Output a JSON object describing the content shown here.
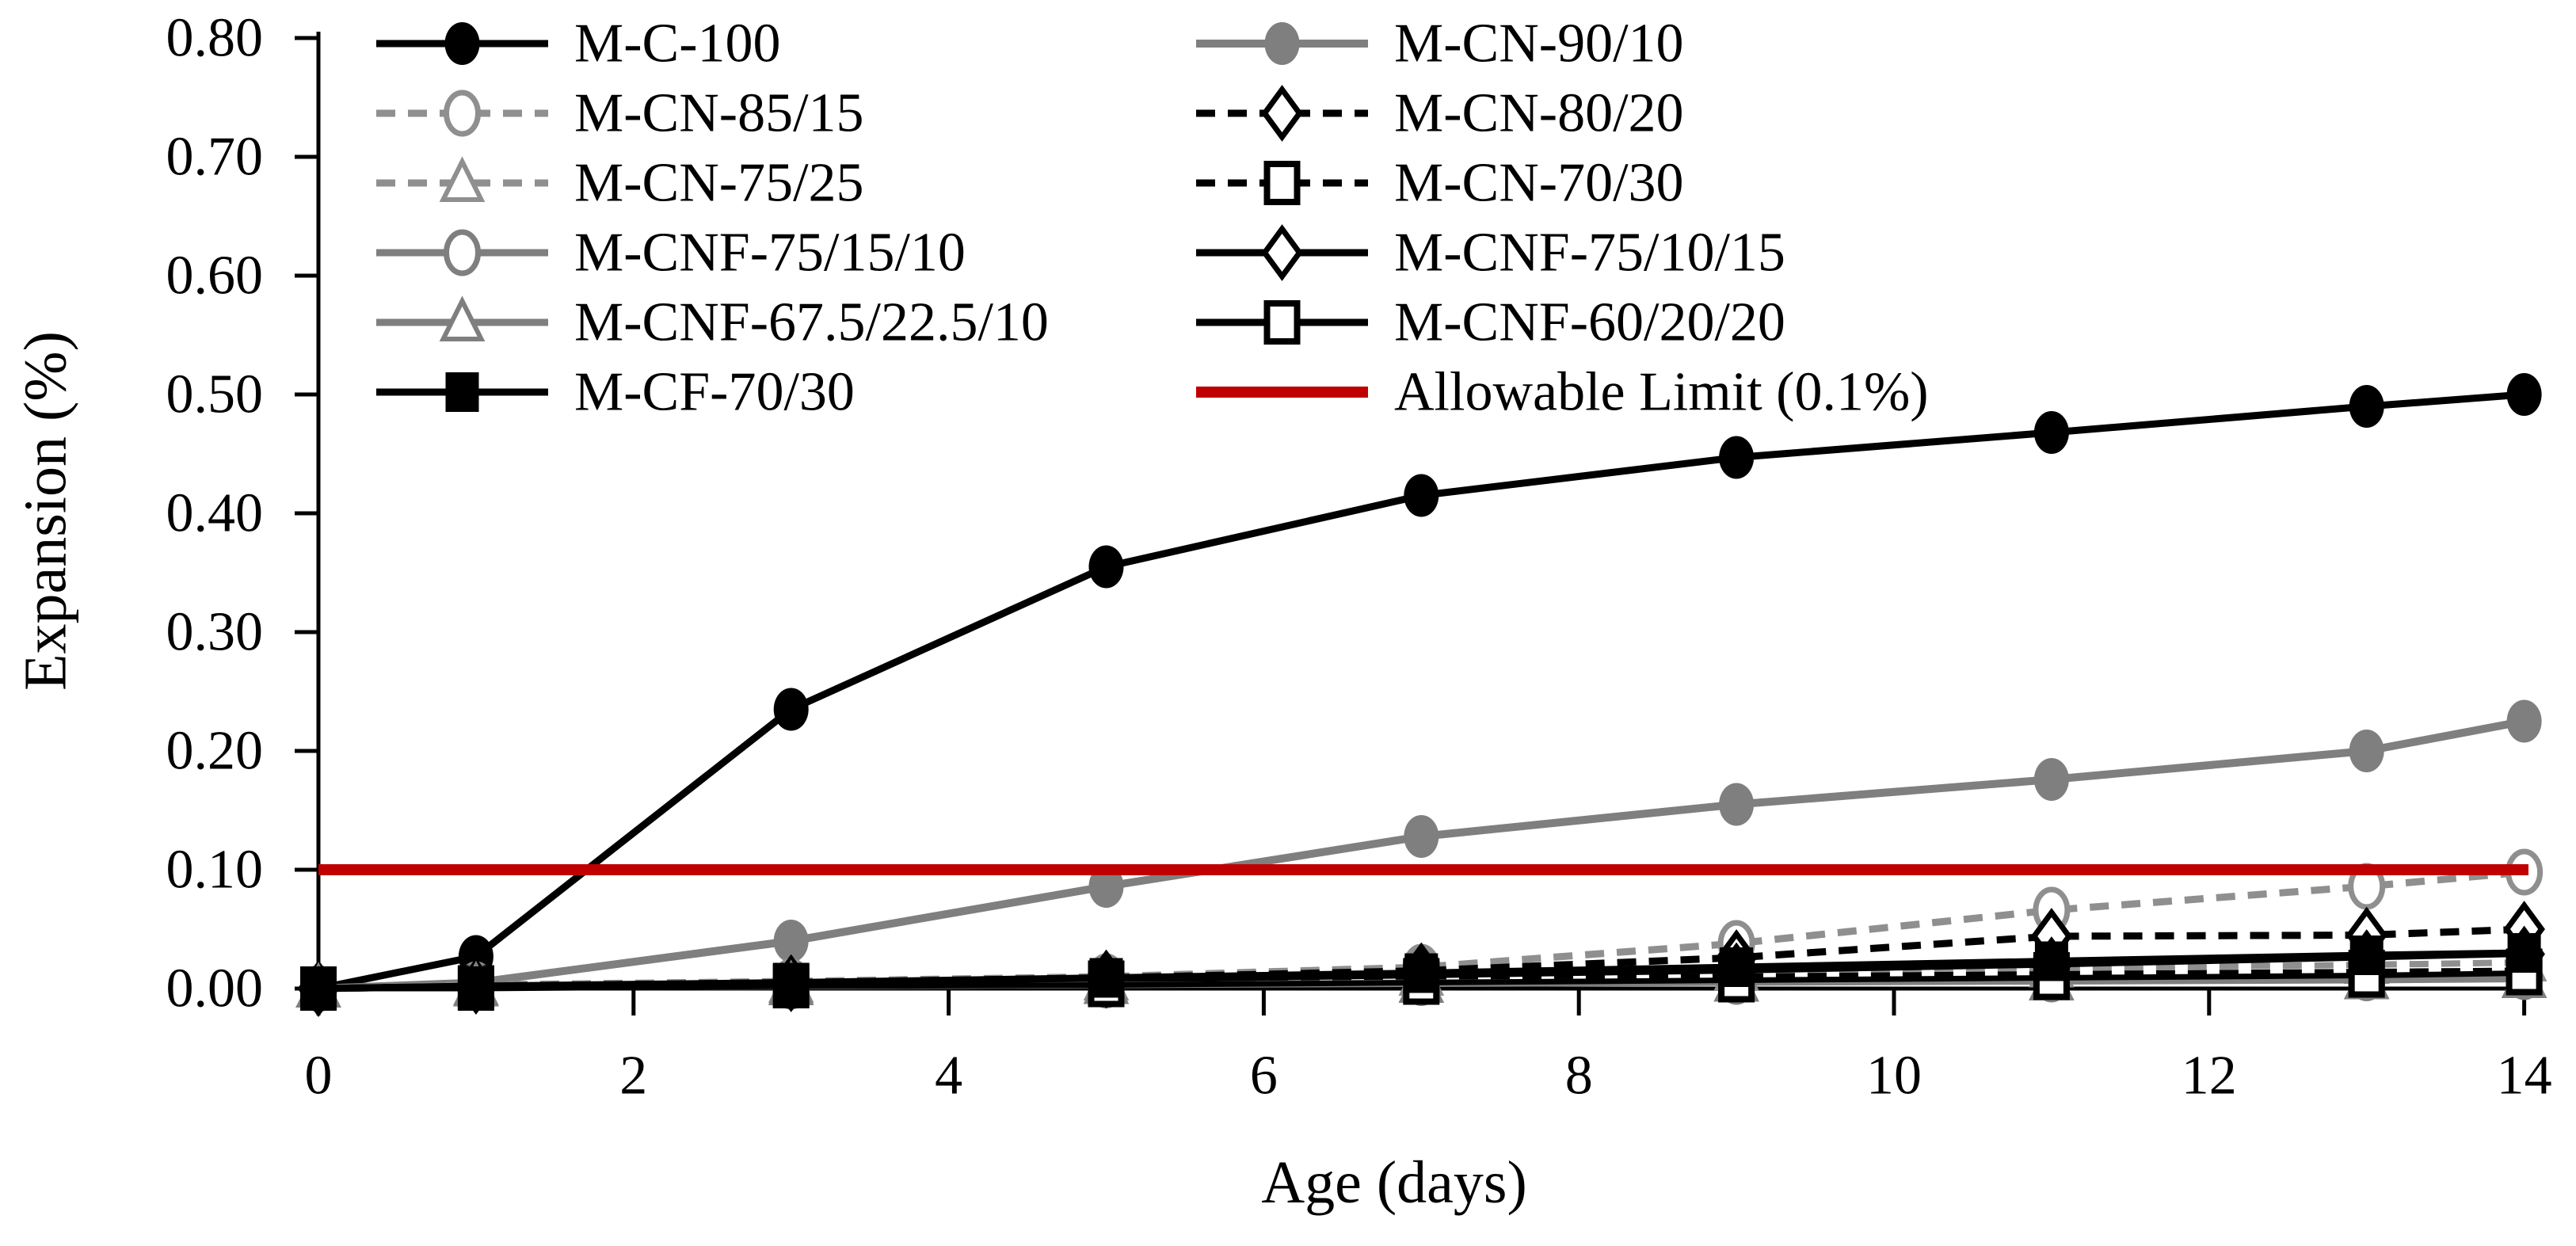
{
  "chart_data": {
    "type": "line",
    "title": "",
    "xlabel": "Age (days)",
    "ylabel": "Expansion (%)",
    "x_label_days": "Age (days)",
    "xlim": [
      0,
      14
    ],
    "ylim": [
      0,
      0.8
    ],
    "grid": false,
    "legend_position": "top-left, two columns",
    "x_ticks": [
      0,
      2,
      4,
      6,
      8,
      10,
      12,
      14
    ],
    "y_tick_labels": [
      "0.00",
      "0.10",
      "0.20",
      "0.30",
      "0.40",
      "0.50",
      "0.60",
      "0.70",
      "0.80"
    ],
    "x": [
      0,
      1,
      3,
      5,
      7,
      9,
      11,
      13,
      14
    ],
    "colors": {
      "black": "#000000",
      "solid_gray": "#7f7f7f",
      "dashed_gray": "#8f8f8f",
      "limit_red": "#c00000"
    },
    "series": [
      {
        "name": "M-C-100",
        "color": "#000000",
        "line": "solid",
        "lw": 9,
        "marker": "circle-filled",
        "values": [
          0,
          0.027,
          0.235,
          0.355,
          0.415,
          0.447,
          0.468,
          0.49,
          0.5
        ]
      },
      {
        "name": "M-CN-90/10",
        "color": "#7f7f7f",
        "line": "solid",
        "lw": 10,
        "marker": "circle-filled",
        "values": [
          0,
          0.005,
          0.04,
          0.086,
          0.128,
          0.155,
          0.176,
          0.2,
          0.225
        ]
      },
      {
        "name": "M-CN-85/15",
        "color": "#8f8f8f",
        "line": "dashed",
        "lw": 9,
        "marker": "circle-open",
        "values": [
          0,
          0.003,
          0.006,
          0.01,
          0.018,
          0.038,
          0.066,
          0.086,
          0.098
        ]
      },
      {
        "name": "M-CN-80/20",
        "color": "#000000",
        "line": "dashed",
        "lw": 9,
        "marker": "diamond-open",
        "values": [
          0,
          0.002,
          0.005,
          0.009,
          0.015,
          0.026,
          0.044,
          0.045,
          0.05
        ]
      },
      {
        "name": "M-CN-75/25",
        "color": "#8f8f8f",
        "line": "dashed",
        "lw": 8,
        "marker": "triangle-open",
        "values": [
          0,
          0.002,
          0.004,
          0.006,
          0.01,
          0.014,
          0.017,
          0.02,
          0.022
        ]
      },
      {
        "name": "M-CN-70/30",
        "color": "#000000",
        "line": "dashed",
        "lw": 8,
        "marker": "square-open",
        "values": [
          0,
          0.001,
          0.003,
          0.005,
          0.007,
          0.01,
          0.012,
          0.014,
          0.015
        ]
      },
      {
        "name": "M-CNF-75/15/10",
        "color": "#7f7f7f",
        "line": "solid",
        "lw": 8,
        "marker": "circle-open",
        "values": [
          0,
          0.001,
          0.002,
          0.003,
          0.005,
          0.006,
          0.008,
          0.009,
          0.01
        ]
      },
      {
        "name": "M-CNF-75/10/15",
        "color": "#000000",
        "line": "solid",
        "lw": 7,
        "marker": "diamond-open",
        "values": [
          0,
          0.002,
          0.004,
          0.007,
          0.011,
          0.015,
          0.02,
          0.026,
          0.029
        ]
      },
      {
        "name": "M-CNF-67.5/22.5/10",
        "color": "#7f7f7f",
        "line": "solid",
        "lw": 8,
        "marker": "triangle-open",
        "values": [
          0,
          0.001,
          0.002,
          0.003,
          0.004,
          0.005,
          0.006,
          0.007,
          0.008
        ]
      },
      {
        "name": "M-CNF-60/20/20",
        "color": "#000000",
        "line": "solid",
        "lw": 7,
        "marker": "square-open",
        "values": [
          0,
          0.0,
          0.002,
          0.003,
          0.005,
          0.007,
          0.009,
          0.011,
          0.013
        ]
      },
      {
        "name": "M-CF-70/30",
        "color": "#000000",
        "line": "solid",
        "lw": 9,
        "marker": "square-filled",
        "values": [
          0,
          0.002,
          0.005,
          0.009,
          0.013,
          0.018,
          0.023,
          0.028,
          0.03
        ]
      },
      {
        "name": "Allowable Limit (0.1%)",
        "color": "#c00000",
        "line": "solid",
        "lw": 14,
        "marker": "none",
        "type": "hline",
        "value": 0.1
      }
    ]
  }
}
